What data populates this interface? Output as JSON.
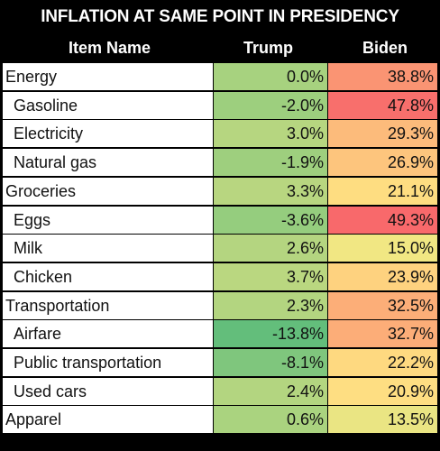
{
  "chart_data": {
    "type": "table",
    "title": "INFLATION AT SAME POINT IN PRESIDENCY",
    "columns": [
      "Item Name",
      "Trump",
      "Biden"
    ],
    "rows": [
      {
        "name": "Energy",
        "sub": false,
        "trump": "0.0%",
        "biden": "38.8%",
        "trump_value": 0.0,
        "biden_value": 38.8
      },
      {
        "name": "Gasoline",
        "sub": true,
        "trump": "-2.0%",
        "biden": "47.8%",
        "trump_value": -2.0,
        "biden_value": 47.8
      },
      {
        "name": "Electricity",
        "sub": true,
        "trump": "3.0%",
        "biden": "29.3%",
        "trump_value": 3.0,
        "biden_value": 29.3
      },
      {
        "name": "Natural gas",
        "sub": true,
        "trump": "-1.9%",
        "biden": "26.9%",
        "trump_value": -1.9,
        "biden_value": 26.9
      },
      {
        "name": "Groceries",
        "sub": false,
        "trump": "3.3%",
        "biden": "21.1%",
        "trump_value": 3.3,
        "biden_value": 21.1
      },
      {
        "name": "Eggs",
        "sub": true,
        "trump": "-3.6%",
        "biden": "49.3%",
        "trump_value": -3.6,
        "biden_value": 49.3
      },
      {
        "name": "Milk",
        "sub": true,
        "trump": "2.6%",
        "biden": "15.0%",
        "trump_value": 2.6,
        "biden_value": 15.0
      },
      {
        "name": "Chicken",
        "sub": true,
        "trump": "3.7%",
        "biden": "23.9%",
        "trump_value": 3.7,
        "biden_value": 23.9
      },
      {
        "name": "Transportation",
        "sub": false,
        "trump": "2.3%",
        "biden": "32.5%",
        "trump_value": 2.3,
        "biden_value": 32.5
      },
      {
        "name": "Airfare",
        "sub": true,
        "trump": "-13.8%",
        "biden": "32.7%",
        "trump_value": -13.8,
        "biden_value": 32.7
      },
      {
        "name": "Public transportation",
        "sub": true,
        "trump": "-8.1%",
        "biden": "22.2%",
        "trump_value": -8.1,
        "biden_value": 22.2
      },
      {
        "name": "Used cars",
        "sub": true,
        "trump": "2.4%",
        "biden": "20.9%",
        "trump_value": 2.4,
        "biden_value": 20.9
      },
      {
        "name": "Apparel",
        "sub": false,
        "trump": "0.6%",
        "biden": "13.5%",
        "trump_value": 0.6,
        "biden_value": 13.5
      }
    ],
    "color_scale": {
      "low": "#63be7b",
      "mid": "#ffeb84",
      "high": "#f8696b"
    }
  }
}
